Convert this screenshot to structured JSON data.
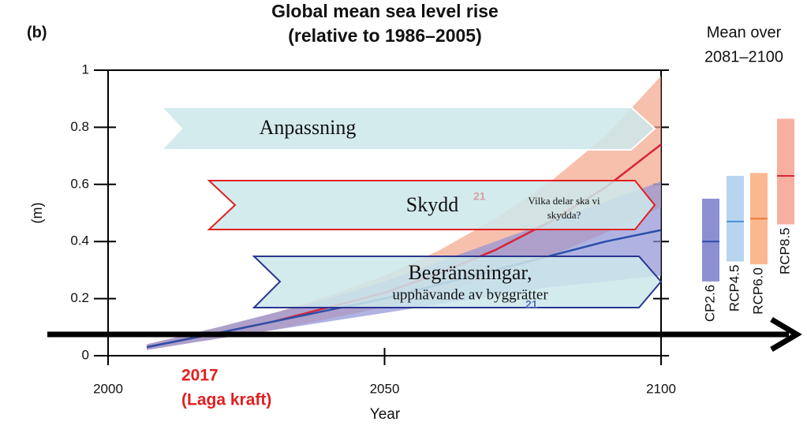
{
  "chart_data": {
    "type": "line",
    "panel_label": "(b)",
    "title": [
      "Global mean sea level rise",
      "(relative to 1986–2005)"
    ],
    "y_label": "(m)",
    "x_label": "Year",
    "xlim": [
      2000,
      2100
    ],
    "xticks": [
      2000,
      2050,
      2100
    ],
    "ylim": [
      0,
      1
    ],
    "yticks": [
      0,
      0.2,
      0.4,
      0.6,
      0.8,
      1
    ],
    "x": [
      2007,
      2020,
      2030,
      2040,
      2050,
      2060,
      2070,
      2080,
      2090,
      2100
    ],
    "series": [
      {
        "color": "#d7263d",
        "band_color": "#f4a58a",
        "values": [
          0.03,
          0.08,
          0.12,
          0.17,
          0.22,
          0.29,
          0.37,
          0.47,
          0.59,
          0.74
        ],
        "lower": [
          0.02,
          0.06,
          0.09,
          0.13,
          0.17,
          0.22,
          0.28,
          0.35,
          0.43,
          0.52
        ],
        "upper": [
          0.04,
          0.1,
          0.15,
          0.21,
          0.28,
          0.37,
          0.48,
          0.61,
          0.77,
          0.98
        ]
      },
      {
        "color": "#2b4fa8",
        "band_color": "#8e93d6",
        "values": [
          0.03,
          0.08,
          0.12,
          0.16,
          0.2,
          0.25,
          0.3,
          0.35,
          0.4,
          0.44
        ],
        "lower": [
          0.02,
          0.06,
          0.09,
          0.12,
          0.15,
          0.18,
          0.21,
          0.24,
          0.26,
          0.28
        ],
        "upper": [
          0.04,
          0.1,
          0.15,
          0.2,
          0.26,
          0.33,
          0.4,
          0.47,
          0.54,
          0.61
        ]
      }
    ],
    "side_panel": {
      "title": [
        "Mean over",
        "2081–2100"
      ],
      "categories": [
        "CP2.6",
        "RCP4.5",
        "RCP6.0",
        "RCP8.5"
      ],
      "colors": [
        "#8c8fd0",
        "#b8d5f0",
        "#f9b890",
        "#f7b0a0"
      ],
      "line_colors": [
        "#2b4fa8",
        "#4a8fd8",
        "#f07a3a",
        "#d7263d"
      ],
      "low": [
        0.26,
        0.33,
        0.32,
        0.46
      ],
      "mean": [
        0.4,
        0.47,
        0.48,
        0.63
      ],
      "high": [
        0.55,
        0.63,
        0.64,
        0.83
      ]
    },
    "annotations": {
      "year_marker": [
        "2017",
        "(Laga kraft)"
      ],
      "adaptation": "Anpassning",
      "protection": "Skydd",
      "protection_question": [
        "Vilka delar ska vi",
        "skydda?"
      ],
      "restriction": [
        "Begränsningar,",
        "upphävande av byggrätter"
      ],
      "note_red": "21",
      "note_blue": "21"
    }
  }
}
